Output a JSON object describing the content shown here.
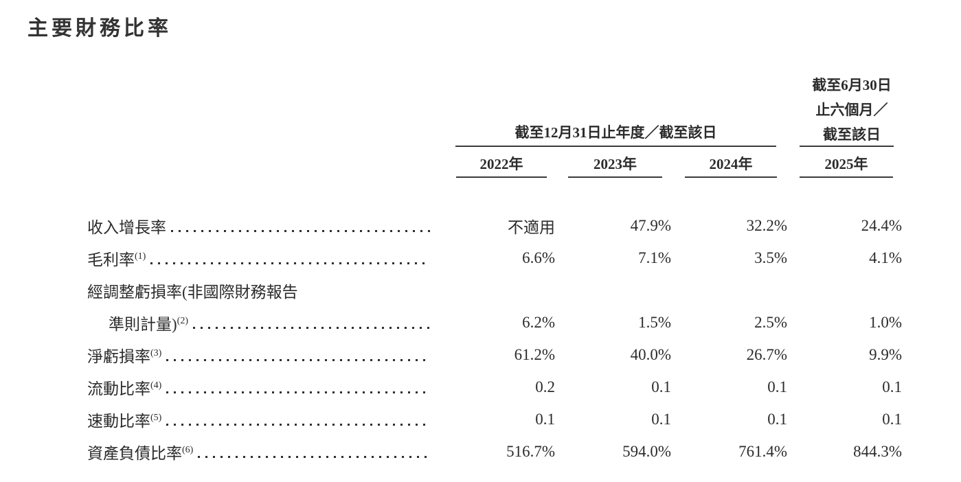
{
  "colors": {
    "text": "#2b2b2b",
    "background": "#ffffff",
    "rule": "#3a3a3a"
  },
  "page_title": "主要財務比率",
  "table": {
    "annual_group_header": "截至12月31日止年度／截至該日",
    "interim_group_header_lines": [
      "截至6月30日",
      "止六個月／",
      "截至該日"
    ],
    "year_headers": [
      "2022年",
      "2023年",
      "2024年",
      "2025年"
    ],
    "rows": [
      {
        "label": "收入增長率",
        "sup": "",
        "values": [
          "不適用",
          "47.9%",
          "32.2%",
          "24.4%"
        ]
      },
      {
        "label": "毛利率",
        "sup": "(1)",
        "values": [
          "6.6%",
          "7.1%",
          "3.5%",
          "4.1%"
        ]
      },
      {
        "label_line1": "經調整虧損率(非國際財務報告",
        "label_line2": "準則計量)",
        "sup": "(2)",
        "values": [
          "6.2%",
          "1.5%",
          "2.5%",
          "1.0%"
        ]
      },
      {
        "label": "淨虧損率",
        "sup": "(3)",
        "values": [
          "61.2%",
          "40.0%",
          "26.7%",
          "9.9%"
        ]
      },
      {
        "label": "流動比率",
        "sup": "(4)",
        "values": [
          "0.2",
          "0.1",
          "0.1",
          "0.1"
        ]
      },
      {
        "label": "速動比率",
        "sup": "(5)",
        "values": [
          "0.1",
          "0.1",
          "0.1",
          "0.1"
        ]
      },
      {
        "label": "資產負債比率",
        "sup": "(6)",
        "values": [
          "516.7%",
          "594.0%",
          "761.4%",
          "844.3%"
        ]
      }
    ]
  }
}
